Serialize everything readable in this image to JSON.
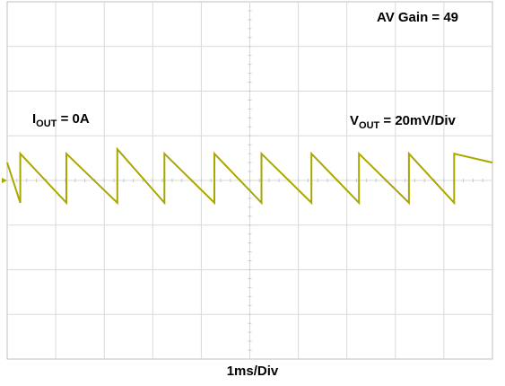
{
  "chart_data": {
    "type": "line",
    "title": "",
    "xlabel": "1ms/Div",
    "ylabel": "",
    "grid": true,
    "x_divisions": 10,
    "y_divisions": 8,
    "annotations": {
      "gain": "AV Gain = 49",
      "iout_prefix": "I",
      "iout_sub": "OUT",
      "iout_value": " = 0A",
      "vout_prefix": "V",
      "vout_sub": "OUT",
      "vout_value": " = 20mV/Div"
    },
    "series": [
      {
        "color": "#a8a800",
        "x": [
          0,
          0.27,
          0.27,
          1.22,
          1.22,
          2.27,
          2.27,
          3.24,
          3.24,
          4.27,
          4.27,
          5.24,
          5.24,
          6.27,
          6.27,
          7.25,
          7.25,
          8.28,
          8.28,
          9.21,
          9.21,
          10.0
        ],
        "y": [
          0.4,
          -0.5,
          0.6,
          -0.5,
          0.6,
          -0.5,
          0.7,
          -0.5,
          0.6,
          -0.5,
          0.6,
          -0.5,
          0.6,
          -0.5,
          0.6,
          -0.5,
          0.6,
          -0.5,
          0.6,
          -0.5,
          0.6,
          0.4
        ]
      }
    ],
    "xlim": [
      0,
      10
    ],
    "ylim": [
      -4,
      4
    ]
  }
}
